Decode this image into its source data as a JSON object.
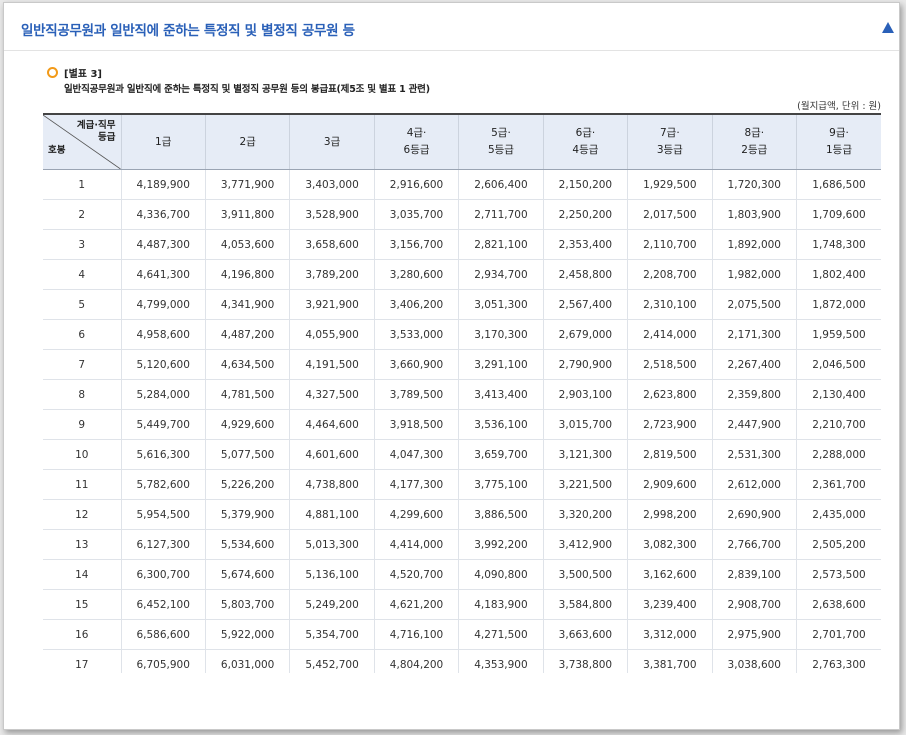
{
  "header": {
    "title": "일반직공무원과 일반직에 준하는 특정직 및 별정직 공무원 등"
  },
  "note": {
    "label": "[별표 3]",
    "title": "일반직공무원과 일반직에 준하는 특정직 및 별정직 공무원 등의 봉급표(제5조 및 별표 1 관련)",
    "unit": "(월지급액, 단위 : 원)"
  },
  "table": {
    "corner_top": [
      "계급·직무",
      "등급"
    ],
    "corner_bottom": "호봉",
    "columns": [
      [
        "1급"
      ],
      [
        "2급"
      ],
      [
        "3급"
      ],
      [
        "4급·",
        "6등급"
      ],
      [
        "5급·",
        "5등급"
      ],
      [
        "6급·",
        "4등급"
      ],
      [
        "7급·",
        "3등급"
      ],
      [
        "8급·",
        "2등급"
      ],
      [
        "9급·",
        "1등급"
      ]
    ],
    "rows": [
      [
        "1",
        "4,189,900",
        "3,771,900",
        "3,403,000",
        "2,916,600",
        "2,606,400",
        "2,150,200",
        "1,929,500",
        "1,720,300",
        "1,686,500"
      ],
      [
        "2",
        "4,336,700",
        "3,911,800",
        "3,528,900",
        "3,035,700",
        "2,711,700",
        "2,250,200",
        "2,017,500",
        "1,803,900",
        "1,709,600"
      ],
      [
        "3",
        "4,487,300",
        "4,053,600",
        "3,658,600",
        "3,156,700",
        "2,821,100",
        "2,353,400",
        "2,110,700",
        "1,892,000",
        "1,748,300"
      ],
      [
        "4",
        "4,641,300",
        "4,196,800",
        "3,789,200",
        "3,280,600",
        "2,934,700",
        "2,458,800",
        "2,208,700",
        "1,982,000",
        "1,802,400"
      ],
      [
        "5",
        "4,799,000",
        "4,341,900",
        "3,921,900",
        "3,406,200",
        "3,051,300",
        "2,567,400",
        "2,310,100",
        "2,075,500",
        "1,872,000"
      ],
      [
        "6",
        "4,958,600",
        "4,487,200",
        "4,055,900",
        "3,533,000",
        "3,170,300",
        "2,679,000",
        "2,414,000",
        "2,171,300",
        "1,959,500"
      ],
      [
        "7",
        "5,120,600",
        "4,634,500",
        "4,191,500",
        "3,660,900",
        "3,291,100",
        "2,790,900",
        "2,518,500",
        "2,267,400",
        "2,046,500"
      ],
      [
        "8",
        "5,284,000",
        "4,781,500",
        "4,327,500",
        "3,789,500",
        "3,413,400",
        "2,903,100",
        "2,623,800",
        "2,359,800",
        "2,130,400"
      ],
      [
        "9",
        "5,449,700",
        "4,929,600",
        "4,464,600",
        "3,918,500",
        "3,536,100",
        "3,015,700",
        "2,723,900",
        "2,447,900",
        "2,210,700"
      ],
      [
        "10",
        "5,616,300",
        "5,077,500",
        "4,601,600",
        "4,047,300",
        "3,659,700",
        "3,121,300",
        "2,819,500",
        "2,531,300",
        "2,288,000"
      ],
      [
        "11",
        "5,782,600",
        "5,226,200",
        "4,738,800",
        "4,177,300",
        "3,775,100",
        "3,221,500",
        "2,909,600",
        "2,612,000",
        "2,361,700"
      ],
      [
        "12",
        "5,954,500",
        "5,379,900",
        "4,881,100",
        "4,299,600",
        "3,886,500",
        "3,320,200",
        "2,998,200",
        "2,690,900",
        "2,435,000"
      ],
      [
        "13",
        "6,127,300",
        "5,534,600",
        "5,013,300",
        "4,414,000",
        "3,992,200",
        "3,412,900",
        "3,082,300",
        "2,766,700",
        "2,505,200"
      ],
      [
        "14",
        "6,300,700",
        "5,674,600",
        "5,136,100",
        "4,520,700",
        "4,090,800",
        "3,500,500",
        "3,162,600",
        "2,839,100",
        "2,573,500"
      ],
      [
        "15",
        "6,452,100",
        "5,803,700",
        "5,249,200",
        "4,621,200",
        "4,183,900",
        "3,584,800",
        "3,239,400",
        "2,908,700",
        "2,638,600"
      ],
      [
        "16",
        "6,586,600",
        "5,922,000",
        "5,354,700",
        "4,716,100",
        "4,271,500",
        "3,663,600",
        "3,312,000",
        "2,975,900",
        "2,701,700"
      ],
      [
        "17",
        "6,705,900",
        "6,031,000",
        "5,452,700",
        "4,804,200",
        "4,353,900",
        "3,738,800",
        "3,381,700",
        "3,038,600",
        "2,763,300"
      ]
    ]
  },
  "colors": {
    "accent": "#2a60b8",
    "marker": "#f29a18",
    "header_bg": "#e6ecf6"
  },
  "icons": {
    "collapse": "triangle-up-icon",
    "marker": "circle-icon"
  }
}
